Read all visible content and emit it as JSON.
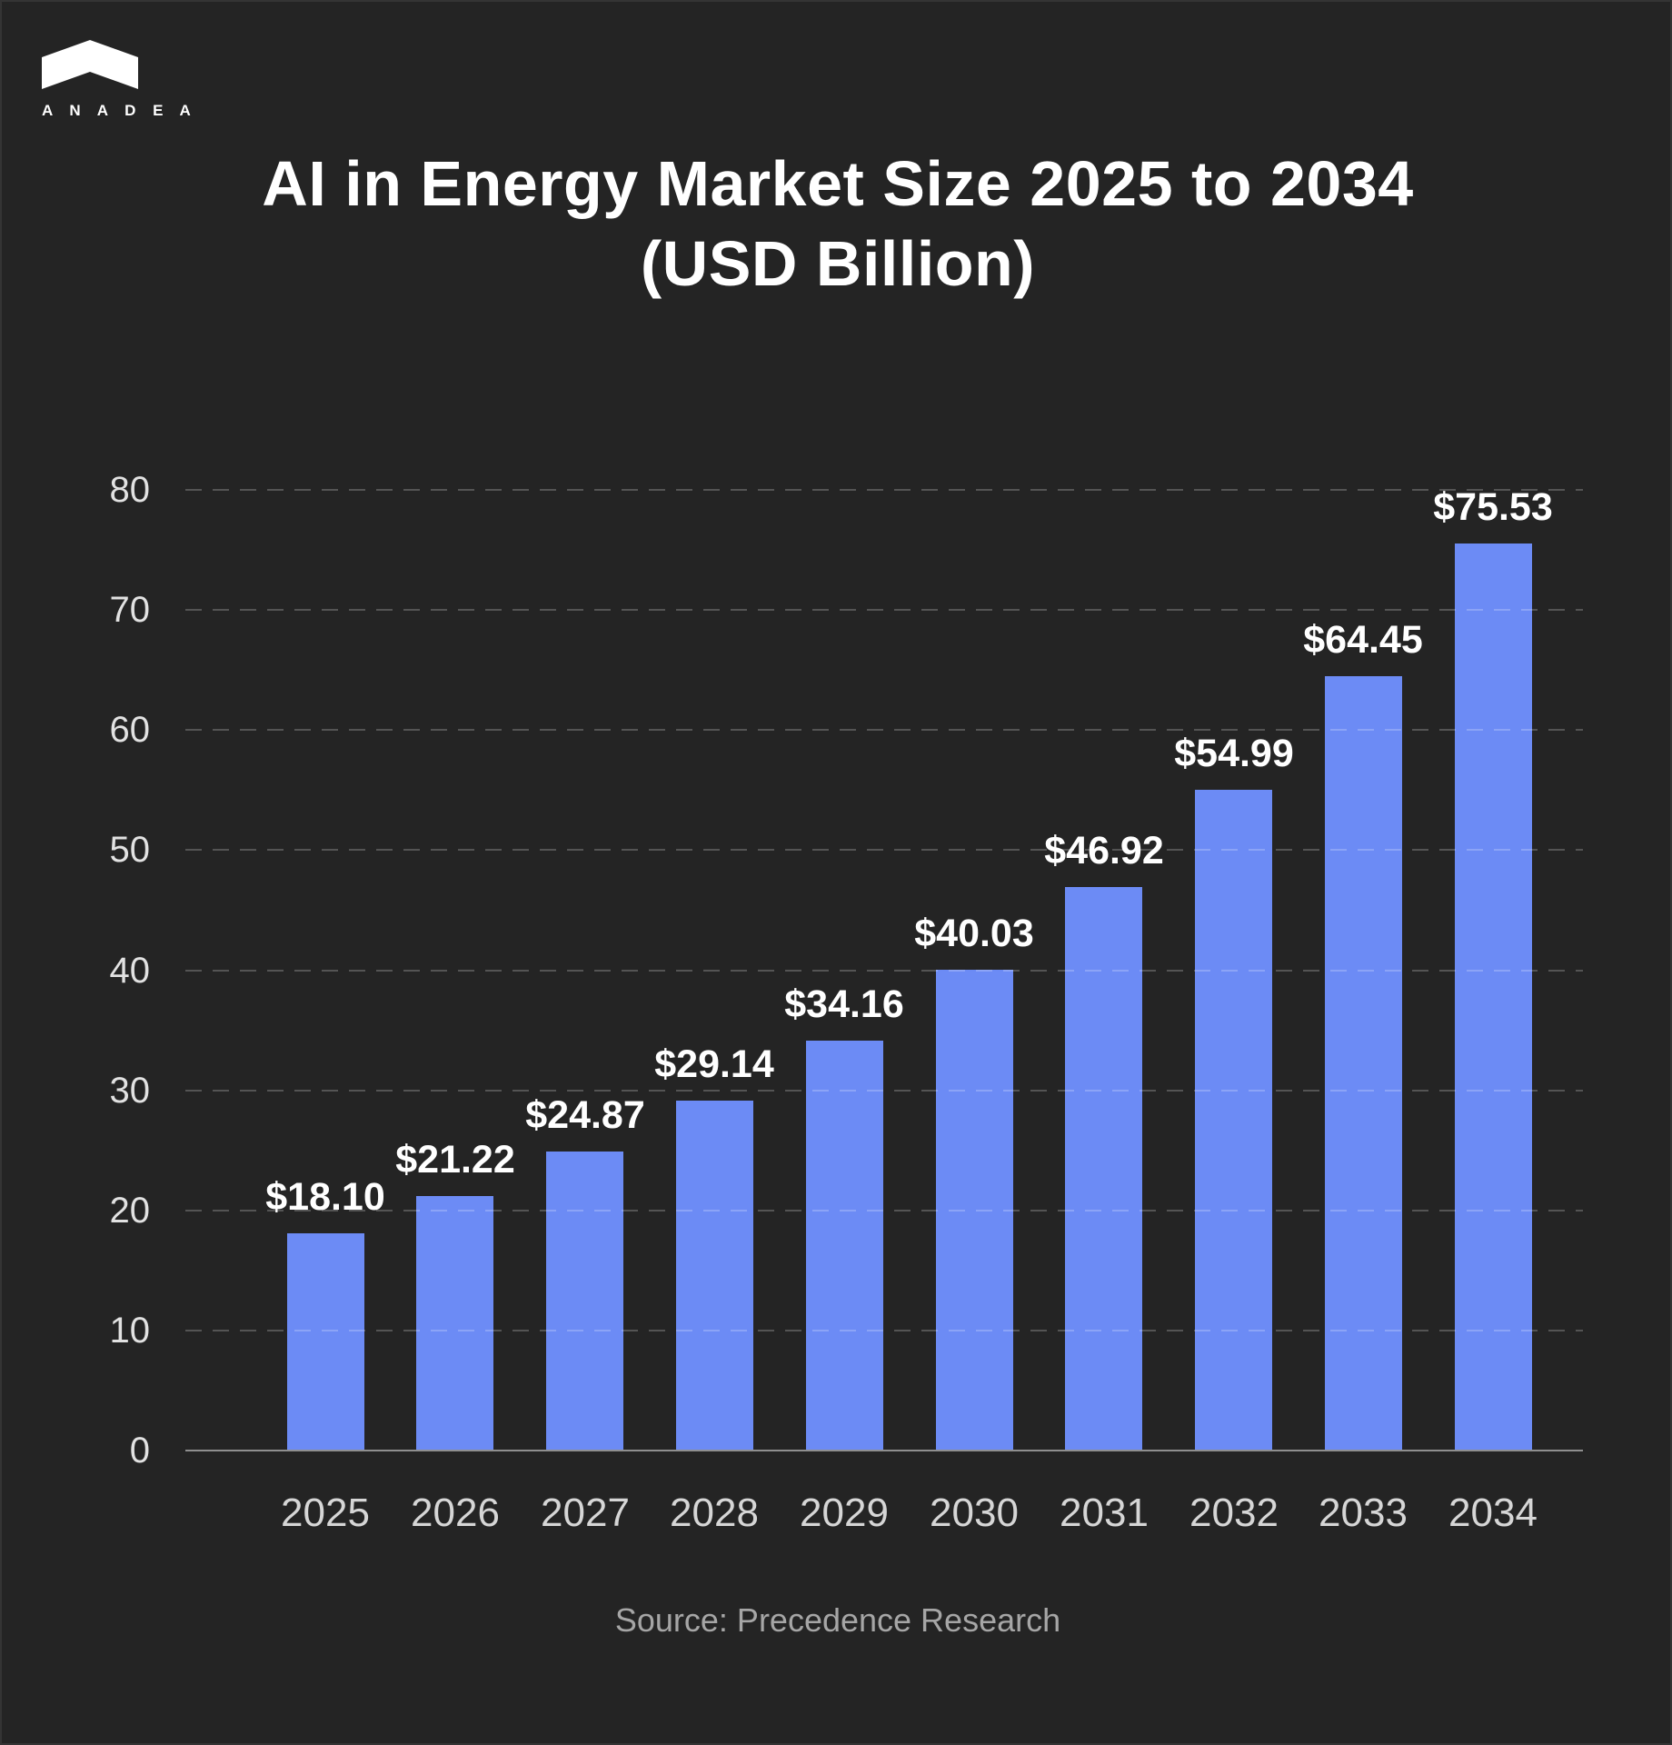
{
  "brand": {
    "name": "A N A D E A",
    "logo_icon": "anadea-chevron-logo"
  },
  "title": {
    "line1": "AI in Energy Market Size 2025 to 2034",
    "line2": "(USD Billion)"
  },
  "source": "Source: Precedence Research",
  "colors": {
    "background": "#242424",
    "bar": "#6c8bf5",
    "grid_dash": "rgba(255,255,255,0.22)",
    "axis_line": "#8f8f8f",
    "title_text": "#ffffff",
    "value_text": "#ffffff",
    "y_tick_text": "#e2e2e2",
    "x_tick_text": "#d6d6d6",
    "source_text": "#a6a6a6"
  },
  "chart_data": {
    "type": "bar",
    "title": "AI in Energy Market Size 2025 to 2034 (USD Billion)",
    "categories": [
      "2025",
      "2026",
      "2027",
      "2028",
      "2029",
      "2030",
      "2031",
      "2032",
      "2033",
      "2034"
    ],
    "values": [
      18.1,
      21.22,
      24.87,
      29.14,
      34.16,
      40.03,
      46.92,
      54.99,
      64.45,
      75.53
    ],
    "value_labels": [
      "$18.10",
      "$21.22",
      "$24.87",
      "$29.14",
      "$34.16",
      "$40.03",
      "$46.92",
      "$54.99",
      "$64.45",
      "$75.53"
    ],
    "xlabel": "",
    "ylabel": "",
    "ylim": [
      0,
      80
    ],
    "yticks": [
      0,
      10,
      20,
      30,
      40,
      50,
      60,
      70,
      80
    ],
    "grid": "horizontal-dashed",
    "legend": "none",
    "bar_color": "#6c8bf5"
  }
}
